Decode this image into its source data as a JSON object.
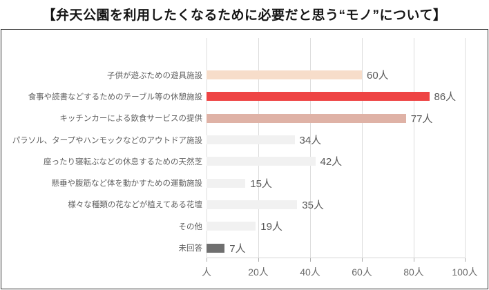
{
  "title": "【弁天公園を利用したくなるために必要だと思う“モノ”について】",
  "chart_data": {
    "type": "bar",
    "orientation": "horizontal",
    "title": "【弁天公園を利用したくなるために必要だと思う“モノ”について】",
    "categories": [
      "子供が遊ぶための遊具施設",
      "食事や読書などするためのテーブル等の休憩施設",
      "キッチンカーによる飲食サービスの提供",
      "パラソル、タープやハンモックなどのアウトドア施設",
      "座ったり寝転ぶなどの休息するための天然芝",
      "懸垂や腹筋など体を動かすための運動施設",
      "様々な種類の花などが植えてある花壇",
      "その他",
      "未回答"
    ],
    "values": [
      60,
      86,
      77,
      34,
      42,
      15,
      35,
      19,
      7
    ],
    "value_labels": [
      "60人",
      "86人",
      "77人",
      "34人",
      "42人",
      "15人",
      "35人",
      "19人",
      "7人"
    ],
    "value_suffix": "人",
    "xlim": [
      0,
      100
    ],
    "x_ticks": [
      "人",
      "20人",
      "40人",
      "60人",
      "80人",
      "100人"
    ],
    "x_tick_values": [
      0,
      20,
      40,
      60,
      80,
      100
    ],
    "grid": true,
    "legend": "none",
    "bar_colors": [
      "#f7ddca",
      "#ee4444",
      "#dfb2a6",
      "#f1f1f1",
      "#f1f1f1",
      "#f1f1f1",
      "#f1f1f1",
      "#f1f1f1",
      "#6f6f6f"
    ],
    "highlight_color": "#ee4444",
    "grid_color": "#dcdcdc",
    "label_color": "#616161"
  }
}
